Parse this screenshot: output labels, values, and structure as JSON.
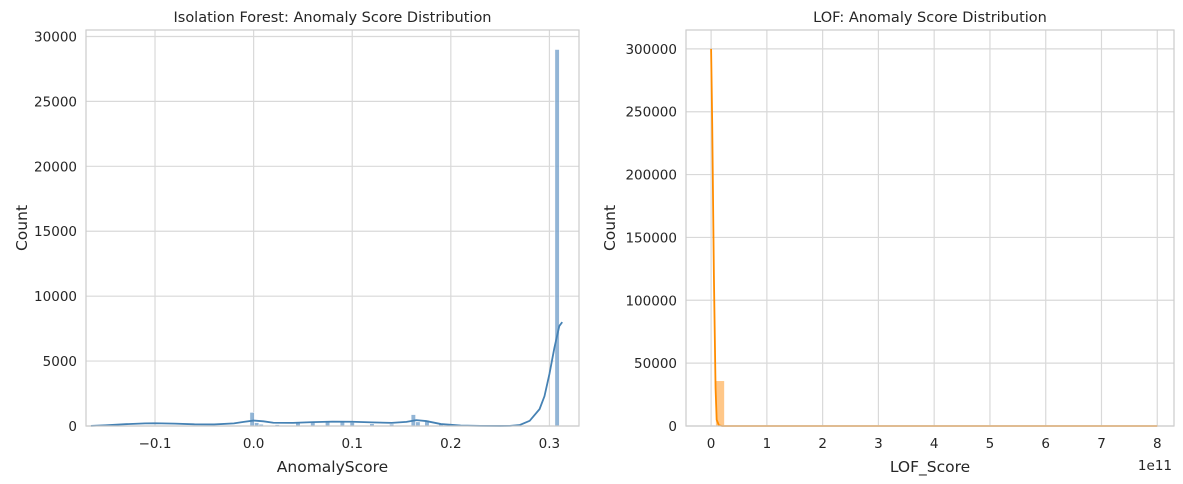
{
  "chart_data": [
    {
      "type": "histogram",
      "title": "Isolation Forest: Anomaly Score Distribution",
      "xlabel": "AnomalyScore",
      "ylabel": "Count",
      "xlim": [
        -0.17,
        0.33
      ],
      "ylim": [
        0,
        30500
      ],
      "xticks": [
        -0.1,
        0.0,
        0.1,
        0.2,
        0.3
      ],
      "xtick_labels": [
        "−0.1",
        "0.0",
        "0.1",
        "0.2",
        "0.3"
      ],
      "yticks": [
        0,
        5000,
        10000,
        15000,
        20000,
        25000,
        30000
      ],
      "ytick_labels": [
        "0",
        "5000",
        "10000",
        "15000",
        "20000",
        "25000",
        "30000"
      ],
      "grid": true,
      "bar_color": "#7fa8cf",
      "line_color": "#4682b4",
      "bars": [
        {
          "x": -0.0015,
          "width": 0.0046,
          "value": 1050
        },
        {
          "x": 0.0031,
          "width": 0.0046,
          "value": 260
        },
        {
          "x": 0.0077,
          "width": 0.0046,
          "value": 140
        },
        {
          "x": 0.024,
          "width": 0.0046,
          "value": 110
        },
        {
          "x": 0.045,
          "width": 0.0046,
          "value": 230
        },
        {
          "x": 0.06,
          "width": 0.0046,
          "value": 300
        },
        {
          "x": 0.075,
          "width": 0.0046,
          "value": 320
        },
        {
          "x": 0.09,
          "width": 0.0046,
          "value": 360
        },
        {
          "x": 0.1,
          "width": 0.0046,
          "value": 280
        },
        {
          "x": 0.12,
          "width": 0.0046,
          "value": 180
        },
        {
          "x": 0.14,
          "width": 0.0046,
          "value": 150
        },
        {
          "x": 0.162,
          "width": 0.0046,
          "value": 880
        },
        {
          "x": 0.1666,
          "width": 0.0046,
          "value": 320
        },
        {
          "x": 0.1758,
          "width": 0.0046,
          "value": 450
        },
        {
          "x": 0.19,
          "width": 0.0046,
          "value": 140
        },
        {
          "x": 0.3078,
          "width": 0.0046,
          "value": 29000
        }
      ],
      "kde": {
        "x": [
          -0.165,
          -0.15,
          -0.13,
          -0.11,
          -0.1,
          -0.08,
          -0.06,
          -0.04,
          -0.02,
          -0.01,
          0.0,
          0.01,
          0.02,
          0.04,
          0.06,
          0.08,
          0.1,
          0.12,
          0.14,
          0.155,
          0.165,
          0.175,
          0.19,
          0.21,
          0.23,
          0.25,
          0.26,
          0.27,
          0.28,
          0.29,
          0.295,
          0.3,
          0.305,
          0.31,
          0.313
        ],
        "y": [
          10,
          60,
          140,
          200,
          210,
          180,
          130,
          120,
          200,
          320,
          420,
          360,
          250,
          240,
          300,
          340,
          330,
          280,
          240,
          320,
          450,
          380,
          150,
          40,
          10,
          5,
          10,
          80,
          400,
          1300,
          2300,
          4000,
          6000,
          7700,
          8000
        ]
      }
    },
    {
      "type": "histogram",
      "title": "LOF: Anomaly Score Distribution",
      "xlabel": "LOF_Score",
      "ylabel": "Count",
      "offset_text": "1e11",
      "xlim": [
        -0.45,
        8.3
      ],
      "ylim": [
        0,
        315000
      ],
      "xticks": [
        0,
        1,
        2,
        3,
        4,
        5,
        6,
        7,
        8
      ],
      "xtick_labels": [
        "0",
        "1",
        "2",
        "3",
        "4",
        "5",
        "6",
        "7",
        "8"
      ],
      "yticks": [
        0,
        50000,
        100000,
        150000,
        200000,
        250000,
        300000
      ],
      "ytick_labels": [
        "0",
        "50000",
        "100000",
        "150000",
        "200000",
        "250000",
        "300000"
      ],
      "grid": true,
      "bar_color": "#ffbd73",
      "line_color": "#ff8c00",
      "bars": [
        {
          "x": 0.16,
          "width": 0.16,
          "value": 36000
        }
      ],
      "kde": {
        "x": [
          0.0,
          0.02,
          0.05,
          0.08,
          0.1,
          0.14,
          0.2,
          0.4,
          1.0,
          2.0,
          4.0,
          6.0,
          8.0
        ],
        "y": [
          300000,
          240000,
          120000,
          30000,
          5000,
          500,
          0,
          0,
          0,
          0,
          0,
          0,
          0
        ]
      }
    }
  ]
}
